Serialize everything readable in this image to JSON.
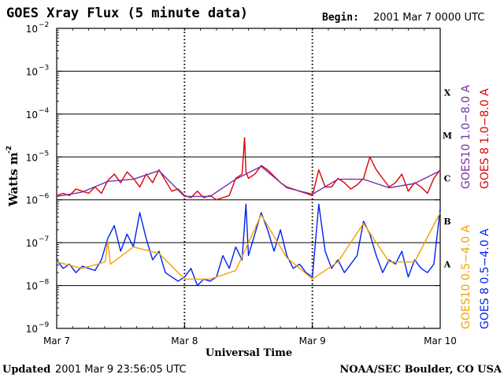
{
  "header": {
    "title": "GOES Xray Flux (5 minute data)",
    "begin_label": "Begin:",
    "begin_value": "2001 Mar 7 0000 UTC"
  },
  "footer": {
    "updated_label": "Updated",
    "updated_value": "2001 Mar  9 23:56:05 UTC",
    "source": "NOAA/SEC Boulder, CO USA"
  },
  "colors": {
    "goes8_long": "#dd0000",
    "goes10_long": "#7a2ea8",
    "goes8_short": "#0022ee",
    "goes10_short": "#f5a000",
    "grid": "#000000"
  },
  "chart_data": {
    "type": "line",
    "yscale": "log",
    "ylabel": "Watts m",
    "ylabel_exp": "-2",
    "xlabel": "Universal Time",
    "xlim": [
      0,
      3
    ],
    "ylim_exponent": [
      -9,
      -2
    ],
    "x_ticks": [
      {
        "value": 0,
        "label": "Mar 7"
      },
      {
        "value": 1,
        "label": "Mar 8"
      },
      {
        "value": 2,
        "label": "Mar 9"
      },
      {
        "value": 3,
        "label": "Mar 10"
      }
    ],
    "y_ticks": [
      {
        "exp": -2,
        "base": "10",
        "sup": "−2"
      },
      {
        "exp": -3,
        "base": "10",
        "sup": "−3"
      },
      {
        "exp": -4,
        "base": "10",
        "sup": "−4"
      },
      {
        "exp": -5,
        "base": "10",
        "sup": "−5"
      },
      {
        "exp": -6,
        "base": "10",
        "sup": "−6"
      },
      {
        "exp": -7,
        "base": "10",
        "sup": "−7"
      },
      {
        "exp": -8,
        "base": "10",
        "sup": "−8"
      },
      {
        "exp": -9,
        "base": "10",
        "sup": "−9"
      }
    ],
    "flare_classes": [
      {
        "label": "X",
        "exp": -3.5
      },
      {
        "label": "M",
        "exp": -4.5
      },
      {
        "label": "C",
        "exp": -5.5
      },
      {
        "label": "B",
        "exp": -6.5
      },
      {
        "label": "A",
        "exp": -7.5
      }
    ],
    "gridlines_exp": [
      -3,
      -4,
      -5,
      -6,
      -7,
      -8
    ],
    "day_dividers": [
      1,
      2
    ],
    "legend_right_long": [
      {
        "name": "GOES10 1.0−8.0 A",
        "color": "#7a2ea8"
      },
      {
        "name": "GOES 8 1.0−8.0 A",
        "color": "#dd0000"
      }
    ],
    "legend_right_short": [
      {
        "name": "GOES10 0.5−4.0 A",
        "color": "#f5a000"
      },
      {
        "name": "GOES 8 0.5−4.0 A",
        "color": "#0022ee"
      }
    ],
    "series": [
      {
        "name": "GOES 8 1.0-8.0 A",
        "color": "#dd0000",
        "x": [
          0.0,
          0.05,
          0.1,
          0.15,
          0.2,
          0.25,
          0.3,
          0.35,
          0.4,
          0.45,
          0.5,
          0.55,
          0.6,
          0.65,
          0.7,
          0.75,
          0.8,
          0.85,
          0.9,
          0.95,
          1.0,
          1.05,
          1.1,
          1.15,
          1.2,
          1.25,
          1.3,
          1.35,
          1.4,
          1.45,
          1.47,
          1.48,
          1.5,
          1.55,
          1.6,
          1.65,
          1.7,
          1.75,
          1.8,
          1.85,
          1.9,
          1.95,
          2.0,
          2.05,
          2.1,
          2.15,
          2.2,
          2.25,
          2.3,
          2.35,
          2.4,
          2.45,
          2.5,
          2.55,
          2.6,
          2.65,
          2.7,
          2.75,
          2.8,
          2.85,
          2.9,
          2.95,
          3.0
        ],
        "y": [
          -5.9,
          -5.85,
          -5.9,
          -5.75,
          -5.8,
          -5.85,
          -5.7,
          -5.85,
          -5.55,
          -5.4,
          -5.6,
          -5.35,
          -5.5,
          -5.7,
          -5.4,
          -5.6,
          -5.3,
          -5.55,
          -5.8,
          -5.75,
          -5.9,
          -5.95,
          -5.8,
          -5.95,
          -5.9,
          -6.0,
          -5.95,
          -5.9,
          -5.5,
          -5.4,
          -4.55,
          -5.35,
          -5.5,
          -5.4,
          -5.2,
          -5.3,
          -5.45,
          -5.6,
          -5.7,
          -5.75,
          -5.8,
          -5.85,
          -5.9,
          -5.3,
          -5.7,
          -5.7,
          -5.5,
          -5.6,
          -5.75,
          -5.65,
          -5.5,
          -5.0,
          -5.3,
          -5.5,
          -5.7,
          -5.6,
          -5.4,
          -5.8,
          -5.6,
          -5.7,
          -5.85,
          -5.5,
          -5.3
        ]
      },
      {
        "name": "GOES10 1.0-8.0 A",
        "color": "#7a2ea8",
        "x": [
          0.0,
          0.2,
          0.4,
          0.6,
          0.8,
          1.0,
          1.2,
          1.4,
          1.6,
          1.8,
          2.0,
          2.2,
          2.4,
          2.6,
          2.8,
          3.0
        ],
        "y": [
          -5.92,
          -5.82,
          -5.57,
          -5.52,
          -5.32,
          -5.92,
          -5.92,
          -5.52,
          -5.22,
          -5.72,
          -5.87,
          -5.52,
          -5.52,
          -5.72,
          -5.62,
          -5.32
        ]
      },
      {
        "name": "GOES 8 0.5-4.0 A",
        "color": "#0022ee",
        "x": [
          0.0,
          0.05,
          0.1,
          0.15,
          0.2,
          0.25,
          0.3,
          0.35,
          0.4,
          0.45,
          0.5,
          0.55,
          0.6,
          0.65,
          0.7,
          0.75,
          0.8,
          0.85,
          0.9,
          0.95,
          1.0,
          1.05,
          1.1,
          1.15,
          1.2,
          1.25,
          1.3,
          1.35,
          1.4,
          1.45,
          1.48,
          1.5,
          1.55,
          1.6,
          1.65,
          1.7,
          1.75,
          1.8,
          1.85,
          1.9,
          1.95,
          2.0,
          2.05,
          2.1,
          2.15,
          2.2,
          2.25,
          2.3,
          2.35,
          2.4,
          2.45,
          2.5,
          2.55,
          2.6,
          2.65,
          2.7,
          2.75,
          2.8,
          2.85,
          2.9,
          2.95,
          3.0
        ],
        "y": [
          -7.4,
          -7.6,
          -7.5,
          -7.7,
          -7.55,
          -7.6,
          -7.65,
          -7.4,
          -6.9,
          -6.6,
          -7.2,
          -6.8,
          -7.1,
          -6.3,
          -6.9,
          -7.4,
          -7.2,
          -7.7,
          -7.8,
          -7.9,
          -7.8,
          -7.6,
          -8.0,
          -7.85,
          -7.9,
          -7.8,
          -7.3,
          -7.6,
          -7.1,
          -7.4,
          -6.1,
          -7.3,
          -6.8,
          -6.3,
          -6.7,
          -7.2,
          -6.7,
          -7.3,
          -7.6,
          -7.5,
          -7.7,
          -7.8,
          -6.1,
          -7.2,
          -7.6,
          -7.4,
          -7.7,
          -7.5,
          -7.3,
          -6.5,
          -6.8,
          -7.3,
          -7.7,
          -7.4,
          -7.5,
          -7.2,
          -7.8,
          -7.4,
          -7.6,
          -7.7,
          -7.5,
          -6.2
        ]
      },
      {
        "name": "GOES10 0.5-4.0 A",
        "color": "#f5a000",
        "x": [
          0.0,
          0.2,
          0.38,
          0.4,
          0.42,
          0.6,
          0.8,
          1.0,
          1.2,
          1.4,
          1.6,
          1.8,
          2.0,
          2.2,
          2.4,
          2.6,
          2.8,
          3.0
        ],
        "y": [
          -7.45,
          -7.6,
          -7.45,
          -6.95,
          -7.5,
          -7.1,
          -7.25,
          -7.85,
          -7.85,
          -7.65,
          -6.35,
          -7.35,
          -7.85,
          -7.45,
          -6.55,
          -7.45,
          -7.45,
          -6.3
        ]
      }
    ]
  }
}
